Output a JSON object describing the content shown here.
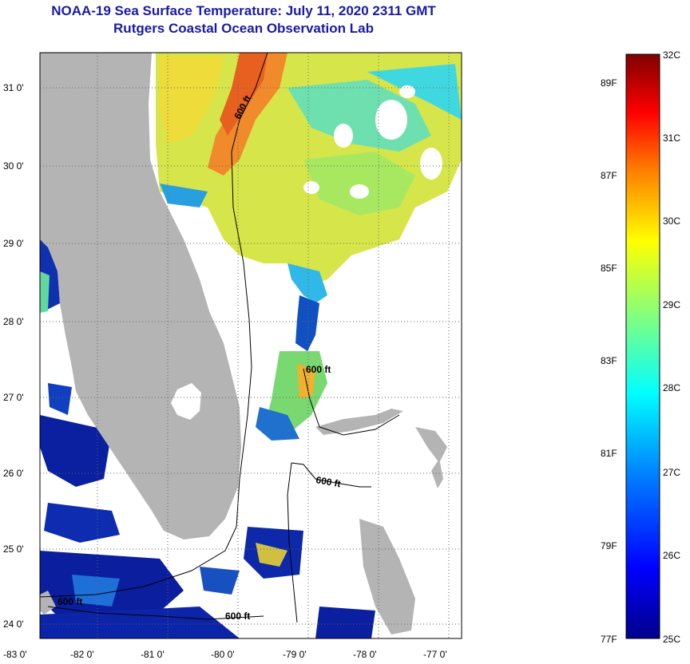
{
  "header": {
    "title": "NOAA-19 Sea Surface Temperature:  July 11, 2020 2311 GMT",
    "subtitle": "Rutgers Coastal Ocean Observation Lab"
  },
  "map": {
    "lon_ticks": [
      "-83 0'",
      "-82 0'",
      "-81 0'",
      "-80 0'",
      "-79 0'",
      "-78 0'",
      "-77 0'"
    ],
    "lat_ticks": [
      "31 0'",
      "30 0'",
      "29 0'",
      "28 0'",
      "27 0'",
      "26 0'",
      "25 0'",
      "24 0'"
    ],
    "contour_labels": [
      "600 ft",
      "600 ft",
      "600 ft",
      "600 ft",
      "600 ft"
    ],
    "land_color": "#b4b4b4",
    "grid": "dotted"
  },
  "colorbar": {
    "celsius": [
      "32C",
      "31C",
      "30C",
      "29C",
      "28C",
      "27C",
      "26C",
      "25C"
    ],
    "fahrenheit": [
      "89F",
      "87F",
      "85F",
      "83F",
      "81F",
      "79F",
      "77F"
    ],
    "colors": [
      "#00008b",
      "#0000ff",
      "#0080ff",
      "#00ffff",
      "#80ff80",
      "#ffff00",
      "#ff8000",
      "#ff0000",
      "#800000"
    ]
  }
}
